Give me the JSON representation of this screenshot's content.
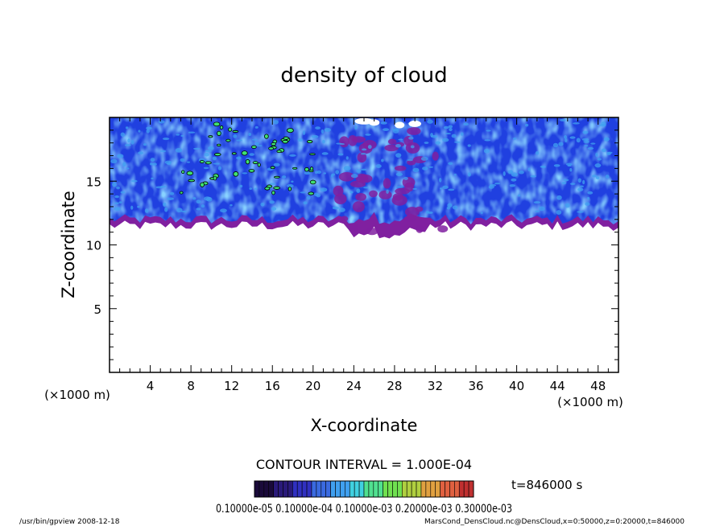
{
  "chart_data": {
    "type": "heatmap",
    "title": "density of cloud",
    "xlabel": "X-coordinate",
    "ylabel": "Z-coordinate",
    "x_unit": "(×1000 m)",
    "y_unit": "(×1000 m)",
    "xlim": [
      0,
      50
    ],
    "ylim": [
      0,
      20
    ],
    "x_ticks": [
      4,
      8,
      12,
      16,
      20,
      24,
      28,
      32,
      36,
      40,
      44,
      48
    ],
    "y_ticks": [
      5,
      10,
      15
    ],
    "contour_interval": "CONTOUR INTERVAL = 1.000E-04",
    "time_label": "t=846000 s",
    "colorbar_labels": "0.10000e-05 0.10000e-04 0.10000e-03 0.20000e-03 0.30000e-03",
    "colorbar_colors": [
      "#1a0a3a",
      "#2a1a7a",
      "#3030c0",
      "#3a6ae0",
      "#40a0f0",
      "#40d0e0",
      "#50e090",
      "#70e050",
      "#b0d040",
      "#e0a040",
      "#e06040",
      "#c03030"
    ],
    "cloud_layer": {
      "z_bottom_approx": 11.5,
      "z_top": 20,
      "gap_x": [
        24,
        31
      ],
      "gap_z_bottom_approx": 10.5
    },
    "grid": false,
    "footer_left": "/usr/bin/gpview   2008-12-18",
    "footer_right": "MarsCond_DensCloud.nc@DensCloud,x=0:50000,z=0:20000,t=846000"
  },
  "accent_colors": {
    "cloud_dark": "#3a1a8a",
    "cloud_blue": "#2040e0",
    "cloud_light": "#40a0f0",
    "cloud_green": "#40e070",
    "cloud_magenta": "#8020a0"
  }
}
